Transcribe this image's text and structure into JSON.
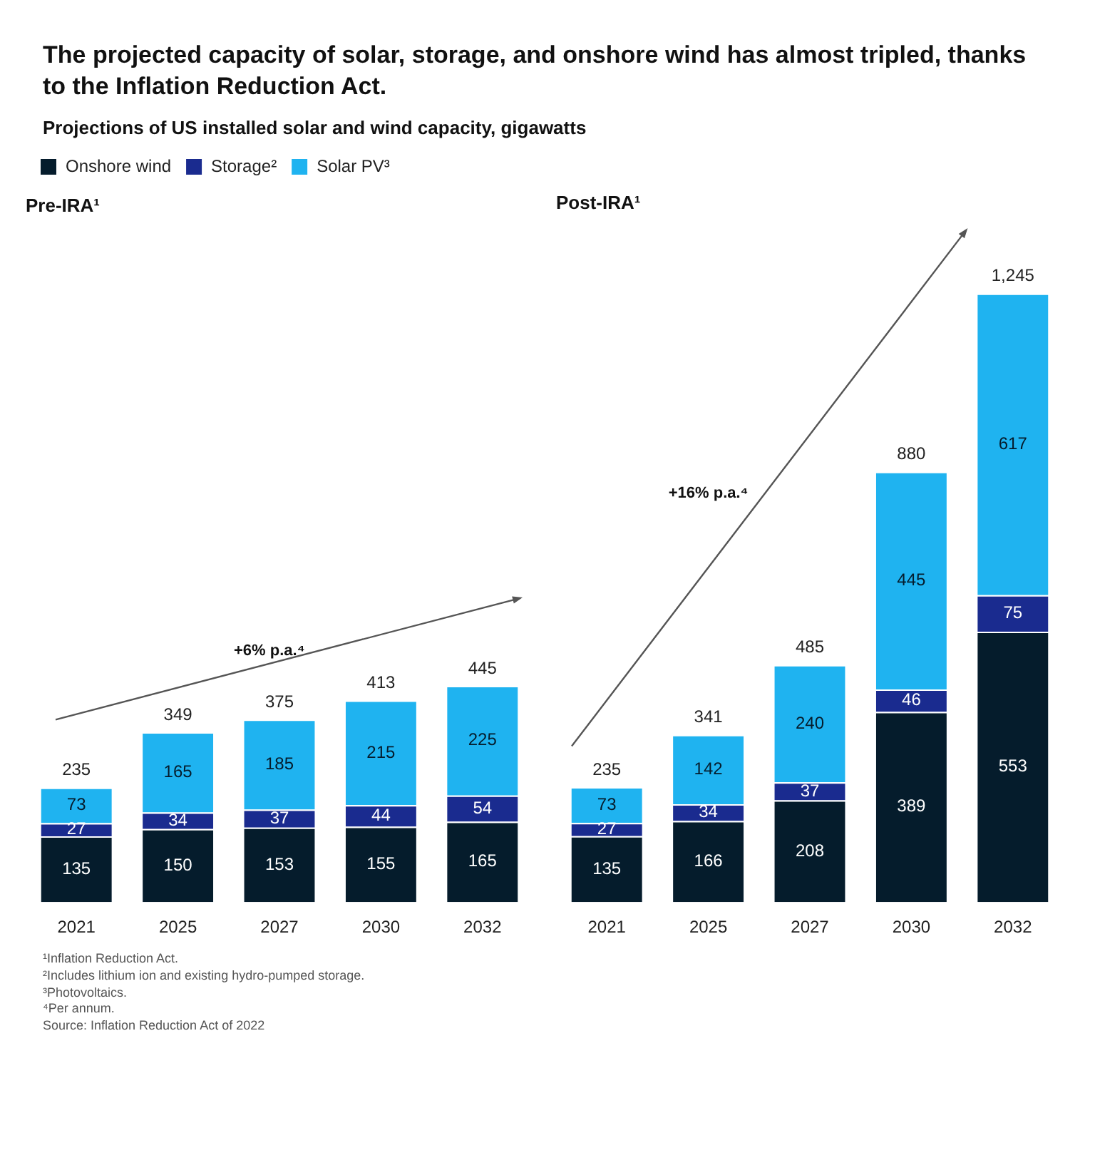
{
  "chart_data": [
    {
      "type": "other",
      "title": "The projected capacity of solar, storage, and onshore wind has almost tripled, thanks to the Inflation Reduction Act.",
      "subtitle": "Projections of US installed solar and wind capacity, gigawatts"
    },
    {
      "type": "bar",
      "title": "Pre-IRA¹",
      "categories": [
        "2021",
        "2025",
        "2027",
        "2030",
        "2032"
      ],
      "stacked": true,
      "data_labels": true,
      "legend": "top left",
      "totals": [
        "235",
        "349",
        "375",
        "413",
        "445"
      ],
      "annotations": [
        "+6% p.a.⁴"
      ],
      "series": [
        {
          "name": "Onshore wind",
          "color": "#051c2c",
          "values": [
            135,
            150,
            153,
            155,
            165
          ]
        },
        {
          "name": "Storage²",
          "color": "#1a2b8f",
          "values": [
            27,
            34,
            37,
            44,
            54
          ]
        },
        {
          "name": "Solar PV³",
          "color": "#1fb3f0",
          "values": [
            73,
            165,
            185,
            215,
            225
          ]
        }
      ]
    },
    {
      "type": "bar",
      "title": "Post-IRA¹",
      "categories": [
        "2021",
        "2025",
        "2027",
        "2030",
        "2032"
      ],
      "stacked": true,
      "data_labels": true,
      "totals": [
        "235",
        "341",
        "485",
        "880",
        "1,245"
      ],
      "annotations": [
        "+16% p.a.⁴"
      ],
      "series": [
        {
          "color": "#051c2c",
          "values": [
            135,
            166,
            208,
            389,
            553
          ]
        },
        {
          "color": "#1a2b8f",
          "values": [
            27,
            34,
            37,
            46,
            75
          ]
        },
        {
          "color": "#1fb3f0",
          "values": [
            73,
            142,
            240,
            445,
            617
          ]
        }
      ]
    },
    {
      "type": "other",
      "annotations": [
        "¹Inflation Reduction Act.",
        "²Includes lithium ion and existing hydro-pumped storage.",
        "³Photovoltaics.",
        "⁴Per annum.",
        "Source: Inflation Reduction Act of 2022"
      ]
    }
  ]
}
